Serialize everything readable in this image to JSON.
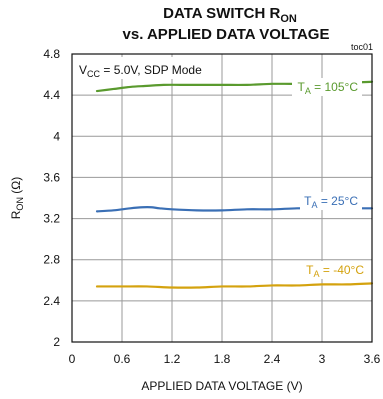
{
  "chart_data": {
    "type": "line",
    "title": {
      "line1_prefix": "DATA SWITCH R",
      "line1_sub": "ON",
      "line2": "vs. APPLIED DATA VOLTAGE"
    },
    "figure_id": "toc01",
    "annotation": {
      "prefix": "V",
      "sub": "CC",
      "suffix": " = 5.0V, SDP Mode"
    },
    "xlabel": "APPLIED DATA VOLTAGE (V)",
    "ylabel": {
      "prefix": "R",
      "sub": "ON",
      "suffix": " (Ω)"
    },
    "xlim": [
      0,
      3.6
    ],
    "ylim": [
      2,
      4.8
    ],
    "x_ticks": [
      "0",
      "0.6",
      "1.2",
      "1.8",
      "2.4",
      "3",
      "3.6"
    ],
    "y_ticks": [
      "2",
      "2.4",
      "2.8",
      "3.2",
      "3.6",
      "4",
      "4.4",
      "4.8"
    ],
    "grid": true,
    "series": [
      {
        "name": "TA = 105°C",
        "label_prefix": "T",
        "label_sub": "A",
        "label_suffix": " = 105°C",
        "color": "#5a9a2e",
        "x": [
          0.3,
          0.5,
          0.7,
          0.9,
          1.1,
          1.3,
          1.5,
          1.8,
          2.1,
          2.4,
          2.7,
          3.0,
          3.3,
          3.6
        ],
        "y": [
          4.44,
          4.46,
          4.48,
          4.49,
          4.5,
          4.5,
          4.5,
          4.5,
          4.5,
          4.51,
          4.51,
          4.52,
          4.52,
          4.53
        ]
      },
      {
        "name": "TA = 25°C",
        "label_prefix": "T",
        "label_sub": "A",
        "label_suffix": " = 25°C",
        "color": "#3a6fb5",
        "x": [
          0.3,
          0.5,
          0.7,
          0.85,
          0.95,
          1.05,
          1.2,
          1.5,
          1.8,
          2.1,
          2.4,
          2.7,
          3.0,
          3.3,
          3.6
        ],
        "y": [
          3.27,
          3.28,
          3.3,
          3.31,
          3.31,
          3.3,
          3.29,
          3.28,
          3.28,
          3.29,
          3.29,
          3.3,
          3.3,
          3.3,
          3.3
        ]
      },
      {
        "name": "TA = -40°C",
        "label_prefix": "T",
        "label_sub": "A",
        "label_suffix": " = -40°C",
        "color": "#d4a20e",
        "x": [
          0.3,
          0.6,
          0.9,
          1.2,
          1.5,
          1.8,
          2.1,
          2.4,
          2.7,
          3.0,
          3.3,
          3.6
        ],
        "y": [
          2.54,
          2.54,
          2.54,
          2.53,
          2.53,
          2.54,
          2.54,
          2.55,
          2.55,
          2.56,
          2.56,
          2.57
        ]
      }
    ]
  }
}
